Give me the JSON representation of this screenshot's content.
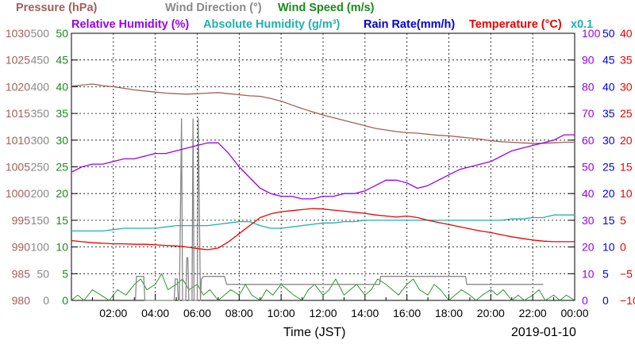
{
  "chart_data": {
    "type": "line",
    "xlabel": "Time (JST)",
    "date": "2019-01-10",
    "xticks": [
      "02:00",
      "04:00",
      "06:00",
      "08:00",
      "10:00",
      "12:00",
      "14:00",
      "16:00",
      "18:00",
      "20:00",
      "22:00",
      "00:00"
    ],
    "xlim_hours": [
      0,
      24
    ],
    "legend": {
      "row1": [
        {
          "id": "pressure",
          "label": "Pressure (hPa)",
          "color": "#a0605a"
        },
        {
          "id": "wind_direction",
          "label": "Wind Direction (°)",
          "color": "#888888"
        },
        {
          "id": "wind_speed",
          "label": "Wind Speed (m/s)",
          "color": "#1a8a1a"
        }
      ],
      "row2": [
        {
          "id": "relative_humidity",
          "label": "Relative Humidity (%)",
          "color": "#9900ee"
        },
        {
          "id": "absolute_humidity",
          "label": "Absolute Humidity (g/m³)",
          "color": "#20b0b0"
        },
        {
          "id": "rain_rate",
          "label": "Rain Rate(mm/h)",
          "color": "#0000dd"
        },
        {
          "id": "temperature",
          "label": "Temperature (°C)",
          "color": "#ee0000"
        }
      ],
      "multiplier": "x0.1"
    },
    "axes": {
      "pressure": {
        "ticks": [
          "980",
          "985",
          "990",
          "995",
          "1000",
          "1005",
          "1010",
          "1015",
          "1020",
          "1025",
          "1030"
        ],
        "ylim": [
          980,
          1030
        ],
        "color": "#a0605a"
      },
      "wind_direction": {
        "ticks": [
          "0",
          "50",
          "100",
          "150",
          "200",
          "250",
          "300",
          "350",
          "400",
          "450",
          "500"
        ],
        "ylim": [
          0,
          500
        ],
        "color": "#888888"
      },
      "wind_speed": {
        "ticks": [
          "0",
          "5",
          "10",
          "15",
          "20",
          "25",
          "30",
          "35",
          "40",
          "45",
          "50"
        ],
        "ylim": [
          0,
          50
        ],
        "color": "#1a8a1a"
      },
      "relative_humidity": {
        "ticks": [
          "0",
          "10",
          "20",
          "30",
          "40",
          "50",
          "60",
          "70",
          "80",
          "90",
          "100"
        ],
        "ylim": [
          0,
          100
        ],
        "color": "#9900ee"
      },
      "rain_rate": {
        "ticks": [
          "0",
          "5",
          "10",
          "15",
          "20",
          "25",
          "30",
          "35",
          "40",
          "45",
          "50"
        ],
        "ylim": [
          0,
          50
        ],
        "color": "#0000dd"
      },
      "temperature": {
        "ticks": [
          "−10",
          "−5",
          "0",
          "5",
          "10",
          "15",
          "20",
          "25",
          "30",
          "35",
          "40"
        ],
        "ylim": [
          -10,
          40
        ],
        "color": "#ee0000"
      }
    },
    "series": [
      {
        "name": "Pressure (hPa)",
        "axis": "pressure",
        "color": "#a0605a",
        "x": [
          0,
          0.5,
          1,
          1.5,
          2,
          2.5,
          3,
          3.5,
          4,
          4.5,
          5,
          5.5,
          6,
          6.5,
          7,
          7.5,
          8,
          8.5,
          9,
          9.5,
          10,
          10.5,
          11,
          11.5,
          12,
          12.5,
          13,
          13.5,
          14,
          14.5,
          15,
          15.5,
          16,
          16.5,
          17,
          17.5,
          18,
          18.5,
          19,
          19.5,
          20,
          20.5,
          21,
          21.5,
          22,
          22.5,
          23,
          23.5,
          24
        ],
        "values": [
          1020.1,
          1020.3,
          1020.5,
          1020.2,
          1020,
          1019.7,
          1019.4,
          1019.2,
          1019,
          1018.8,
          1018.7,
          1018.6,
          1018.7,
          1018.8,
          1018.9,
          1018.7,
          1018.5,
          1018.3,
          1018.2,
          1017.8,
          1017.3,
          1016.6,
          1015.9,
          1015.3,
          1014.7,
          1014.2,
          1013.7,
          1013.2,
          1012.7,
          1012.2,
          1011.9,
          1011.6,
          1011.4,
          1011.3,
          1011.1,
          1010.9,
          1010.8,
          1010.6,
          1010.4,
          1010.2,
          1009.9,
          1009.7,
          1009.6,
          1009.5,
          1009.4,
          1009.4,
          1009.5,
          1009.6,
          1009.6
        ]
      },
      {
        "name": "Wind Direction (°)",
        "axis": "wind_direction",
        "color": "#888888",
        "x": [
          3.05,
          3.1,
          3.45,
          3.5,
          4.9,
          4.95,
          5.05,
          5.1,
          5.15,
          5.25,
          5.3,
          5.45,
          5.5,
          5.55,
          5.6,
          5.75,
          5.8,
          5.85,
          5.9,
          6,
          6.05,
          6.15,
          6.2,
          6.3,
          6.4,
          7,
          7.3,
          7.4,
          7.6,
          7.7,
          14.7,
          14.75,
          17.4,
          17.45,
          18.8,
          18.85,
          22.5
        ],
        "values": [
          0,
          45,
          45,
          0,
          0,
          40,
          40,
          0,
          0,
          340,
          0,
          0,
          80,
          80,
          0,
          0,
          340,
          0,
          0,
          0,
          340,
          0,
          40,
          45,
          45,
          45,
          45,
          30,
          30,
          30,
          30,
          45,
          45,
          45,
          45,
          30,
          30
        ]
      },
      {
        "name": "Wind Speed (m/s)",
        "axis": "wind_speed",
        "color": "#1a8a1a",
        "x": [
          0,
          0.3,
          0.6,
          1,
          1.4,
          1.8,
          2.2,
          2.6,
          3,
          3.3,
          3.6,
          4,
          4.3,
          4.6,
          5,
          5.3,
          5.6,
          6,
          6.3,
          6.6,
          7,
          7.3,
          7.6,
          8,
          8.3,
          8.6,
          9,
          9.3,
          9.6,
          10,
          10.3,
          10.6,
          11,
          11.3,
          11.6,
          12,
          12.3,
          12.6,
          13,
          13.3,
          13.6,
          14,
          14.3,
          14.6,
          15,
          15.3,
          15.6,
          16,
          16.3,
          16.6,
          17,
          17.3,
          17.6,
          18,
          18.3,
          18.6,
          19,
          19.3,
          19.6,
          20,
          20.3,
          20.6,
          21,
          21.3,
          21.6,
          22,
          22.3,
          22.6,
          23,
          23.3,
          23.6,
          24
        ],
        "values": [
          0,
          1,
          0,
          2,
          1,
          0,
          2,
          1,
          3,
          4,
          2,
          3,
          5,
          2,
          3,
          4,
          2,
          3,
          1,
          2,
          0,
          1,
          2,
          1,
          3,
          1,
          0,
          2,
          1,
          3,
          2,
          1,
          0,
          2,
          3,
          1,
          2,
          4,
          1,
          2,
          3,
          1,
          2,
          4,
          3,
          2,
          1,
          3,
          4,
          2,
          1,
          3,
          2,
          0,
          1,
          2,
          1,
          0,
          1,
          2,
          1,
          2,
          0,
          1,
          0,
          1,
          2,
          0,
          1,
          0,
          1,
          0
        ]
      },
      {
        "name": "Relative Humidity (%)",
        "axis": "relative_humidity",
        "color": "#9900ee",
        "x": [
          0,
          0.5,
          1,
          1.5,
          2,
          2.5,
          3,
          3.5,
          4,
          4.5,
          5,
          5.5,
          6,
          6.5,
          7,
          7.5,
          8,
          8.5,
          9,
          9.5,
          10,
          10.5,
          11,
          11.5,
          12,
          12.5,
          13,
          13.5,
          14,
          14.5,
          15,
          15.5,
          16,
          16.5,
          17,
          17.5,
          18,
          18.5,
          19,
          19.5,
          20,
          20.5,
          21,
          21.5,
          22,
          22.5,
          23,
          23.5,
          24
        ],
        "values": [
          48,
          50,
          51,
          51,
          52,
          53,
          53,
          54,
          55,
          55,
          56,
          57,
          58,
          59,
          59,
          55,
          50,
          46,
          42,
          40,
          39,
          39,
          38,
          38,
          39,
          39,
          40,
          40,
          41,
          43,
          45,
          45,
          44,
          42,
          43,
          45,
          47,
          49,
          50,
          51,
          52,
          54,
          56,
          57,
          58,
          59,
          60,
          62,
          62
        ]
      },
      {
        "name": "Absolute Humidity (g/m³)",
        "axis": "relative_humidity",
        "color": "#20b0b0",
        "x": [
          0,
          0.5,
          1,
          1.5,
          2,
          2.5,
          3,
          3.5,
          4,
          4.5,
          5,
          5.5,
          6,
          6.5,
          7,
          7.5,
          8,
          8.5,
          9,
          9.5,
          10,
          10.5,
          11,
          11.5,
          12,
          12.5,
          13,
          13.5,
          14,
          14.5,
          15,
          15.5,
          16,
          16.5,
          17,
          17.5,
          18,
          18.5,
          19,
          19.5,
          20,
          20.5,
          21,
          21.5,
          22,
          22.5,
          23,
          23.5,
          24
        ],
        "values": [
          26,
          26,
          26,
          26,
          26.5,
          27,
          27,
          27,
          27,
          27.5,
          28,
          28,
          28,
          28,
          28.5,
          29,
          29.5,
          29.5,
          28,
          27,
          27,
          27.5,
          28,
          28.5,
          29,
          29,
          29.5,
          29.5,
          30,
          30,
          30,
          30,
          30,
          30,
          30,
          30,
          30,
          30,
          30,
          30,
          30,
          30,
          30.5,
          30.5,
          31,
          31,
          32,
          32,
          32
        ]
      },
      {
        "name": "Temperature (°C)",
        "axis": "temperature",
        "color": "#ee0000",
        "x": [
          0,
          0.5,
          1,
          1.5,
          2,
          2.5,
          3,
          3.5,
          4,
          4.5,
          5,
          5.5,
          6,
          6.5,
          7,
          7.5,
          8,
          8.5,
          9,
          9.5,
          10,
          10.5,
          11,
          11.5,
          12,
          12.5,
          13,
          13.5,
          14,
          14.5,
          15,
          15.5,
          16,
          16.5,
          17,
          17.5,
          18,
          18.5,
          19,
          19.5,
          20,
          20.5,
          21,
          21.5,
          22,
          22.5,
          23,
          23.5,
          24
        ],
        "values": [
          1.2,
          1,
          0.8,
          0.7,
          0.6,
          0.6,
          0.5,
          0.5,
          0.4,
          0.3,
          0.2,
          0,
          -0.3,
          -0.5,
          -0.2,
          1,
          2.5,
          4,
          5.5,
          6.2,
          6.6,
          6.8,
          7,
          7.2,
          7.1,
          6.9,
          6.7,
          6.5,
          6.3,
          6,
          5.8,
          5.6,
          5.8,
          5.5,
          5,
          4.6,
          4.2,
          3.8,
          3.4,
          3,
          2.7,
          2.3,
          1.9,
          1.6,
          1.3,
          1.1,
          1,
          1,
          1
        ]
      }
    ]
  }
}
